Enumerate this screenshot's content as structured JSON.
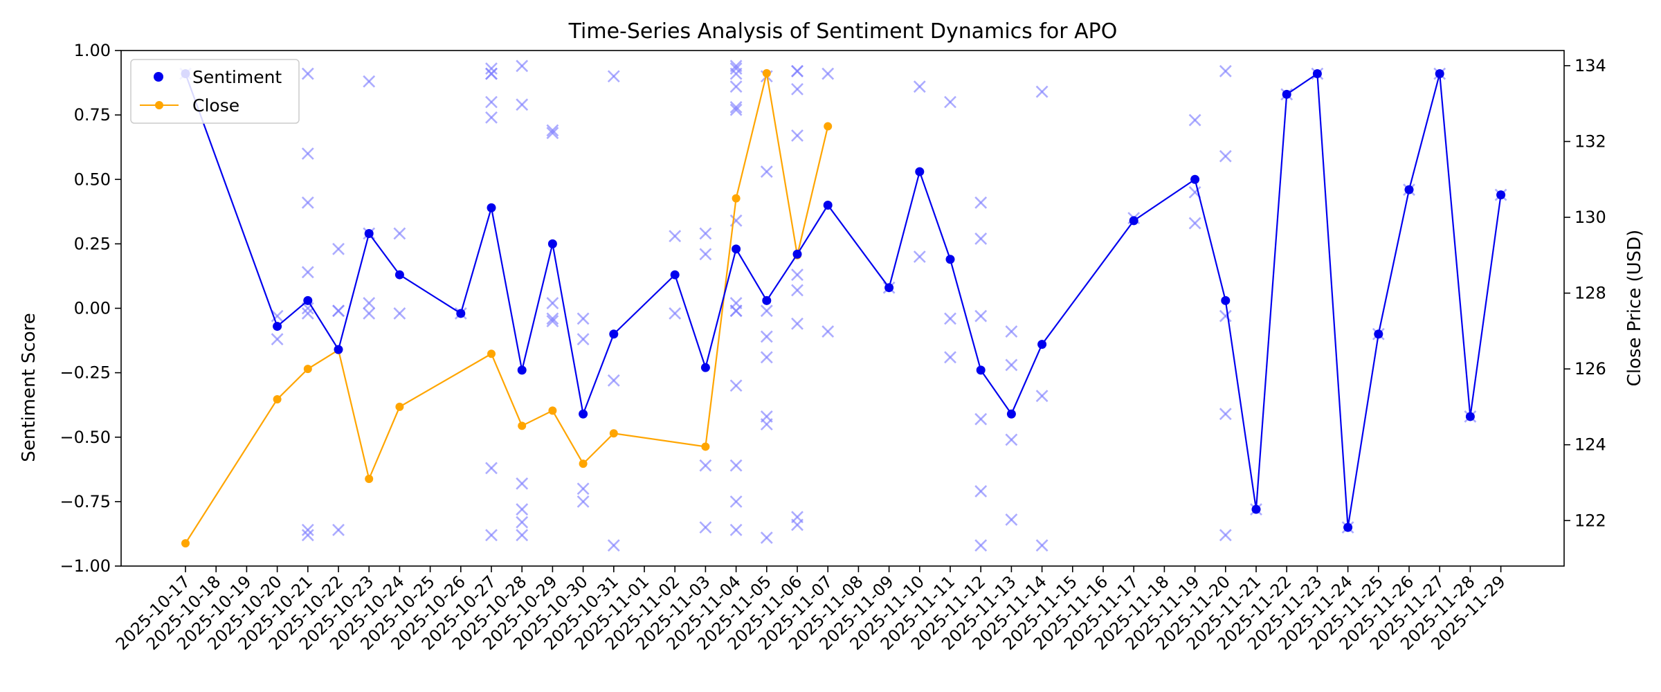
{
  "chart_data": {
    "type": "line",
    "title": "Time-Series Analysis of Sentiment Dynamics for APO",
    "ylabel": "Sentiment Score",
    "y2label": "Close Price (USD)",
    "xlabel": "",
    "ylim": [
      -1.0,
      1.0
    ],
    "y2lim": [
      120.8,
      134.4
    ],
    "yticks": [
      "−1.00",
      "−0.75",
      "−0.50",
      "−0.25",
      "0.00",
      "0.25",
      "0.50",
      "0.75",
      "1.00"
    ],
    "y2ticks": [
      "122",
      "124",
      "126",
      "128",
      "130",
      "132",
      "134"
    ],
    "x_dates": [
      "2025-10-17",
      "2025-10-18",
      "2025-10-19",
      "2025-10-20",
      "2025-10-21",
      "2025-10-22",
      "2025-10-23",
      "2025-10-24",
      "2025-10-25",
      "2025-10-26",
      "2025-10-27",
      "2025-10-28",
      "2025-10-29",
      "2025-10-30",
      "2025-10-31",
      "2025-11-01",
      "2025-11-02",
      "2025-11-03",
      "2025-11-04",
      "2025-11-05",
      "2025-11-06",
      "2025-11-07",
      "2025-11-08",
      "2025-11-09",
      "2025-11-10",
      "2025-11-11",
      "2025-11-12",
      "2025-11-13",
      "2025-11-14",
      "2025-11-15",
      "2025-11-16",
      "2025-11-17",
      "2025-11-18",
      "2025-11-19",
      "2025-11-20",
      "2025-11-21",
      "2025-11-22",
      "2025-11-23",
      "2025-11-24",
      "2025-11-25",
      "2025-11-26",
      "2025-11-27",
      "2025-11-28",
      "2025-11-29"
    ],
    "legend": {
      "placement": "upper-left",
      "entries": [
        "Sentiment",
        "Close"
      ]
    },
    "colors": {
      "sentiment": "#0000ee",
      "close": "#ffa500",
      "scatter": "#8080ff"
    },
    "grid": false,
    "series": [
      {
        "name": "Sentiment",
        "axis": "left",
        "x": [
          "2025-10-17",
          "2025-10-20",
          "2025-10-21",
          "2025-10-22",
          "2025-10-23",
          "2025-10-24",
          "2025-10-26",
          "2025-10-27",
          "2025-10-28",
          "2025-10-29",
          "2025-10-30",
          "2025-10-31",
          "2025-11-02",
          "2025-11-03",
          "2025-11-04",
          "2025-11-05",
          "2025-11-06",
          "2025-11-07",
          "2025-11-09",
          "2025-11-10",
          "2025-11-11",
          "2025-11-12",
          "2025-11-13",
          "2025-11-14",
          "2025-11-17",
          "2025-11-19",
          "2025-11-20",
          "2025-11-21",
          "2025-11-22",
          "2025-11-23",
          "2025-11-24",
          "2025-11-25",
          "2025-11-26",
          "2025-11-27",
          "2025-11-28",
          "2025-11-29"
        ],
        "y": [
          0.91,
          -0.07,
          0.03,
          -0.16,
          0.29,
          0.13,
          -0.02,
          0.39,
          -0.24,
          0.25,
          -0.41,
          -0.1,
          0.13,
          -0.23,
          0.23,
          0.03,
          0.21,
          0.4,
          0.08,
          0.53,
          0.19,
          -0.24,
          -0.41,
          -0.14,
          0.34,
          0.5,
          0.03,
          -0.78,
          0.83,
          0.91,
          -0.85,
          -0.1,
          0.46,
          0.91,
          -0.42,
          0.44
        ]
      },
      {
        "name": "Close",
        "axis": "right",
        "x": [
          "2025-10-17",
          "2025-10-20",
          "2025-10-21",
          "2025-10-22",
          "2025-10-23",
          "2025-10-24",
          "2025-10-27",
          "2025-10-28",
          "2025-10-29",
          "2025-10-30",
          "2025-10-31",
          "2025-11-03",
          "2025-11-04",
          "2025-11-05",
          "2025-11-06",
          "2025-11-07"
        ],
        "y": [
          121.4,
          125.2,
          126.0,
          126.5,
          123.1,
          125.0,
          126.4,
          124.5,
          124.9,
          123.5,
          124.3,
          123.95,
          130.5,
          133.8,
          129.0,
          132.4
        ]
      },
      {
        "name": "",
        "kind": "scatter-x",
        "axis": "left",
        "points": [
          [
            "2025-10-17",
            0.91
          ],
          [
            "2025-10-20",
            -0.03
          ],
          [
            "2025-10-20",
            -0.12
          ],
          [
            "2025-10-21",
            0.91
          ],
          [
            "2025-10-21",
            0.6
          ],
          [
            "2025-10-21",
            0.41
          ],
          [
            "2025-10-21",
            0.14
          ],
          [
            "2025-10-21",
            0.0
          ],
          [
            "2025-10-21",
            -0.02
          ],
          [
            "2025-10-21",
            -0.86
          ],
          [
            "2025-10-21",
            -0.88
          ],
          [
            "2025-10-22",
            0.23
          ],
          [
            "2025-10-22",
            -0.01
          ],
          [
            "2025-10-22",
            -0.01
          ],
          [
            "2025-10-22",
            -0.86
          ],
          [
            "2025-10-23",
            0.88
          ],
          [
            "2025-10-23",
            0.29
          ],
          [
            "2025-10-23",
            0.02
          ],
          [
            "2025-10-23",
            -0.02
          ],
          [
            "2025-10-24",
            0.29
          ],
          [
            "2025-10-24",
            -0.02
          ],
          [
            "2025-10-26",
            -0.02
          ],
          [
            "2025-10-27",
            0.93
          ],
          [
            "2025-10-27",
            0.91
          ],
          [
            "2025-10-27",
            0.91
          ],
          [
            "2025-10-27",
            0.8
          ],
          [
            "2025-10-27",
            0.74
          ],
          [
            "2025-10-27",
            -0.62
          ],
          [
            "2025-10-27",
            -0.88
          ],
          [
            "2025-10-28",
            0.94
          ],
          [
            "2025-10-28",
            0.79
          ],
          [
            "2025-10-28",
            -0.68
          ],
          [
            "2025-10-28",
            -0.78
          ],
          [
            "2025-10-28",
            -0.83
          ],
          [
            "2025-10-28",
            -0.88
          ],
          [
            "2025-10-29",
            0.69
          ],
          [
            "2025-10-29",
            0.68
          ],
          [
            "2025-10-29",
            0.02
          ],
          [
            "2025-10-29",
            -0.04
          ],
          [
            "2025-10-29",
            -0.05
          ],
          [
            "2025-10-30",
            -0.04
          ],
          [
            "2025-10-30",
            -0.12
          ],
          [
            "2025-10-30",
            -0.7
          ],
          [
            "2025-10-30",
            -0.75
          ],
          [
            "2025-10-31",
            0.9
          ],
          [
            "2025-10-31",
            -0.28
          ],
          [
            "2025-10-31",
            -0.92
          ],
          [
            "2025-11-02",
            0.28
          ],
          [
            "2025-11-02",
            -0.02
          ],
          [
            "2025-11-03",
            0.29
          ],
          [
            "2025-11-03",
            0.21
          ],
          [
            "2025-11-03",
            -0.61
          ],
          [
            "2025-11-03",
            -0.85
          ],
          [
            "2025-11-04",
            0.94
          ],
          [
            "2025-11-04",
            0.93
          ],
          [
            "2025-11-04",
            0.91
          ],
          [
            "2025-11-04",
            0.86
          ],
          [
            "2025-11-04",
            0.78
          ],
          [
            "2025-11-04",
            0.77
          ],
          [
            "2025-11-04",
            0.34
          ],
          [
            "2025-11-04",
            0.02
          ],
          [
            "2025-11-04",
            -0.01
          ],
          [
            "2025-11-04",
            -0.01
          ],
          [
            "2025-11-04",
            -0.3
          ],
          [
            "2025-11-04",
            -0.61
          ],
          [
            "2025-11-04",
            -0.75
          ],
          [
            "2025-11-04",
            -0.86
          ],
          [
            "2025-11-05",
            0.9
          ],
          [
            "2025-11-05",
            0.53
          ],
          [
            "2025-11-05",
            -0.01
          ],
          [
            "2025-11-05",
            -0.11
          ],
          [
            "2025-11-05",
            -0.19
          ],
          [
            "2025-11-05",
            -0.42
          ],
          [
            "2025-11-05",
            -0.45
          ],
          [
            "2025-11-05",
            -0.89
          ],
          [
            "2025-11-06",
            0.92
          ],
          [
            "2025-11-06",
            0.92
          ],
          [
            "2025-11-06",
            0.85
          ],
          [
            "2025-11-06",
            0.67
          ],
          [
            "2025-11-06",
            0.13
          ],
          [
            "2025-11-06",
            0.07
          ],
          [
            "2025-11-06",
            -0.06
          ],
          [
            "2025-11-06",
            -0.81
          ],
          [
            "2025-11-06",
            -0.84
          ],
          [
            "2025-11-07",
            0.91
          ],
          [
            "2025-11-07",
            -0.09
          ],
          [
            "2025-11-09",
            0.08
          ],
          [
            "2025-11-10",
            0.86
          ],
          [
            "2025-11-10",
            0.2
          ],
          [
            "2025-11-11",
            0.8
          ],
          [
            "2025-11-11",
            -0.04
          ],
          [
            "2025-11-11",
            -0.19
          ],
          [
            "2025-11-12",
            0.41
          ],
          [
            "2025-11-12",
            0.27
          ],
          [
            "2025-11-12",
            -0.03
          ],
          [
            "2025-11-12",
            -0.43
          ],
          [
            "2025-11-12",
            -0.71
          ],
          [
            "2025-11-12",
            -0.92
          ],
          [
            "2025-11-13",
            -0.09
          ],
          [
            "2025-11-13",
            -0.22
          ],
          [
            "2025-11-13",
            -0.51
          ],
          [
            "2025-11-13",
            -0.82
          ],
          [
            "2025-11-14",
            0.84
          ],
          [
            "2025-11-14",
            -0.34
          ],
          [
            "2025-11-14",
            -0.92
          ],
          [
            "2025-11-17",
            0.35
          ],
          [
            "2025-11-19",
            0.73
          ],
          [
            "2025-11-19",
            0.45
          ],
          [
            "2025-11-19",
            0.33
          ],
          [
            "2025-11-20",
            0.92
          ],
          [
            "2025-11-20",
            0.59
          ],
          [
            "2025-11-20",
            -0.03
          ],
          [
            "2025-11-20",
            -0.41
          ],
          [
            "2025-11-20",
            -0.88
          ],
          [
            "2025-11-21",
            -0.78
          ],
          [
            "2025-11-22",
            0.83
          ],
          [
            "2025-11-23",
            0.91
          ],
          [
            "2025-11-24",
            -0.85
          ],
          [
            "2025-11-25",
            -0.1
          ],
          [
            "2025-11-26",
            0.46
          ],
          [
            "2025-11-27",
            0.91
          ],
          [
            "2025-11-28",
            -0.42
          ],
          [
            "2025-11-29",
            0.44
          ]
        ]
      }
    ]
  }
}
